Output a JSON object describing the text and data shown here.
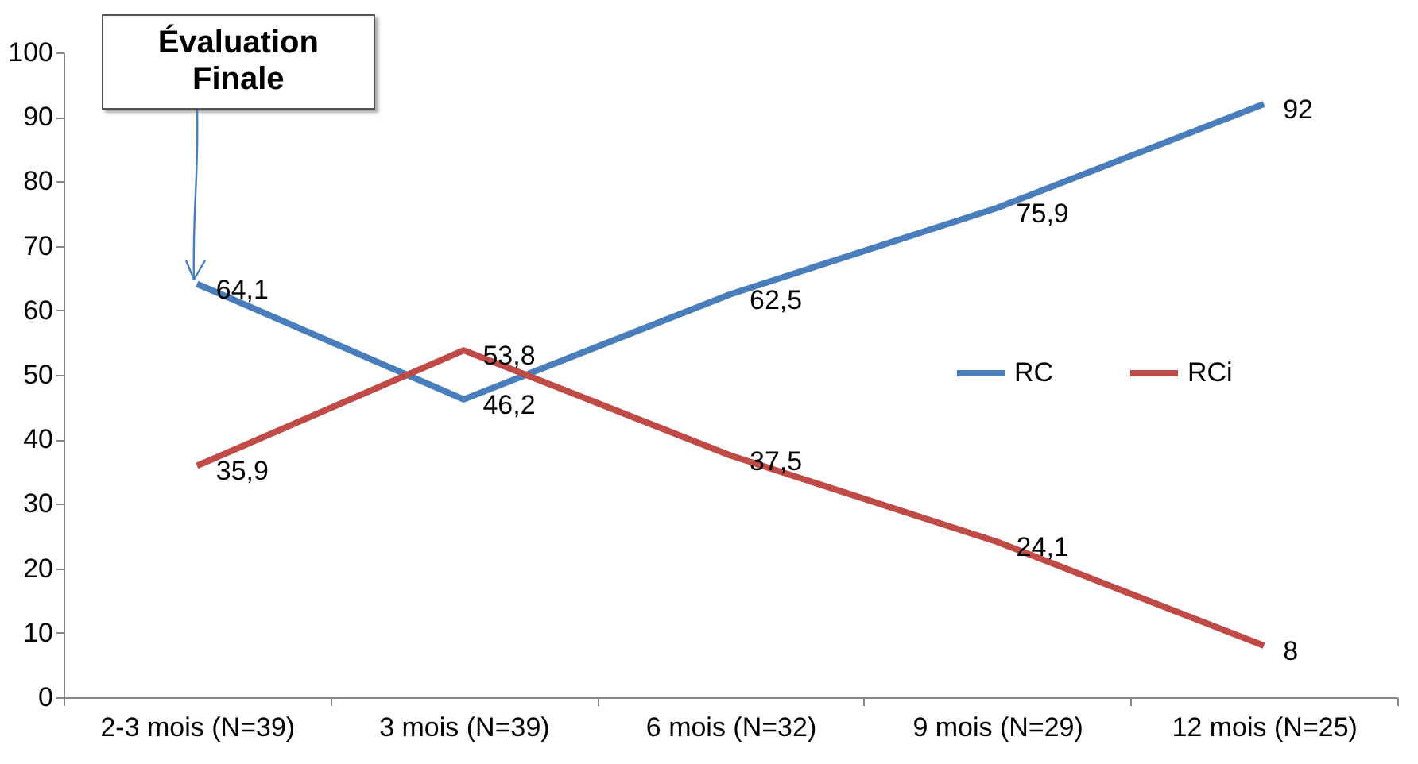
{
  "chart_data": {
    "type": "line",
    "categories": [
      "2-3 mois (N=39)",
      "3 mois (N=39)",
      "6 mois (N=32)",
      "9 mois (N=29)",
      "12 mois (N=25)"
    ],
    "series": [
      {
        "name": "RC",
        "color": "#4a7ebb",
        "values": [
          64.1,
          46.2,
          62.5,
          75.9,
          92
        ],
        "value_labels": [
          "64,1",
          "46,2",
          "62,5",
          "75,9",
          "92"
        ]
      },
      {
        "name": "RCi",
        "color": "#be4b48",
        "values": [
          35.9,
          53.8,
          37.5,
          24.1,
          8
        ],
        "value_labels": [
          "35,9",
          "53,8",
          "37,5",
          "24,1",
          "8"
        ]
      }
    ],
    "ylim": [
      0,
      100
    ],
    "yticks": [
      0,
      10,
      20,
      30,
      40,
      50,
      60,
      70,
      80,
      90,
      100
    ],
    "grid": false,
    "legend": "right",
    "marker": "none",
    "annotations": [
      {
        "text": "Évaluation Finale",
        "x": "2-3 mois (N=39)",
        "y": 64.1
      }
    ]
  }
}
